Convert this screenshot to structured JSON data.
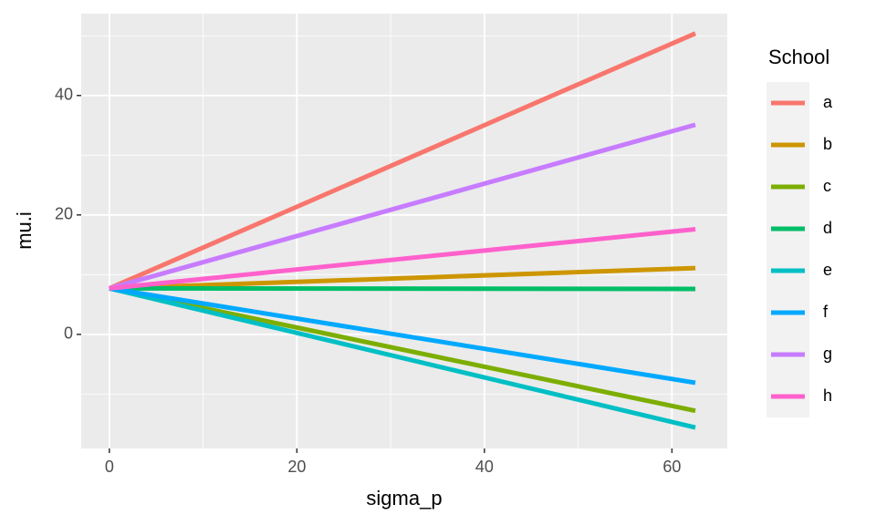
{
  "chart_data": {
    "type": "line",
    "x_label": "sigma_p",
    "y_label": "mu.i",
    "x": [
      0,
      62.5
    ],
    "series": [
      {
        "name": "a",
        "color": "#F8766D",
        "values": [
          7.7,
          50.4
        ]
      },
      {
        "name": "b",
        "color": "#CD9600",
        "values": [
          7.7,
          11.1
        ]
      },
      {
        "name": "c",
        "color": "#7CAE00",
        "values": [
          7.7,
          -12.8
        ]
      },
      {
        "name": "d",
        "color": "#00BE67",
        "values": [
          7.7,
          7.6
        ]
      },
      {
        "name": "e",
        "color": "#00BFC4",
        "values": [
          7.7,
          -15.6
        ]
      },
      {
        "name": "f",
        "color": "#00A9FF",
        "values": [
          7.7,
          -8.1
        ]
      },
      {
        "name": "g",
        "color": "#C77CFF",
        "values": [
          7.7,
          35.1
        ]
      },
      {
        "name": "h",
        "color": "#FF61CC",
        "values": [
          7.7,
          17.6
        ]
      }
    ],
    "legend_title": "School",
    "xlim": [
      -3,
      65.9
    ],
    "ylim": [
      -19.1,
      53.7
    ],
    "xticks": [
      0,
      20,
      40,
      60
    ],
    "yticks": [
      0,
      20,
      40
    ],
    "xminor": [
      10,
      30,
      50
    ],
    "yminor": [
      -10,
      10,
      30,
      50
    ],
    "grid": true,
    "legend": "right"
  }
}
